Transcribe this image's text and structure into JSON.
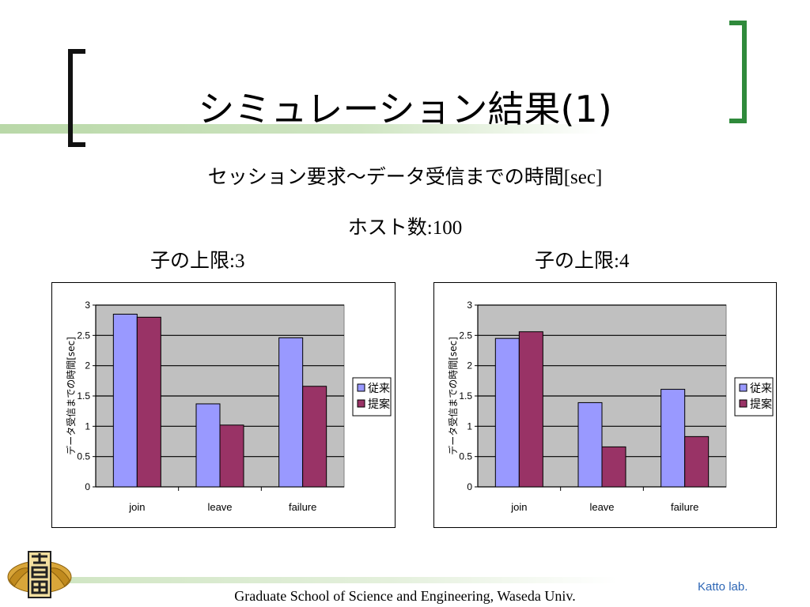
{
  "slide": {
    "title": "シミュレーション結果(1)",
    "subtitle_main": "セッション要求～データ受信までの時間",
    "subtitle_unit": "[sec]",
    "hosts_label": "ホスト数",
    "hosts_sep": ":",
    "hosts_value": "100",
    "footer": "Graduate School of Science and Engineering, Waseda Univ.",
    "lab": "Katto lab."
  },
  "colors": {
    "series_conventional": "#9999ff",
    "series_proposed": "#993366",
    "plot_background": "#c0c0c0",
    "accent_green": "#2f8a3b"
  },
  "chart_data": [
    {
      "type": "bar",
      "heading_label": "子の上限",
      "heading_sep": ":",
      "heading_value": "3",
      "ylabel": "データ受信までの時間[sec]",
      "ylim": [
        0,
        3
      ],
      "yticks": [
        "0",
        "0.5",
        "1",
        "1.5",
        "2",
        "2.5",
        "3"
      ],
      "categories": [
        "join",
        "leave",
        "failure"
      ],
      "series": [
        {
          "name": "従来",
          "values": [
            2.85,
            1.37,
            2.46
          ]
        },
        {
          "name": "提案",
          "values": [
            2.8,
            1.02,
            1.66
          ]
        }
      ],
      "legend_position": "right",
      "grid": true
    },
    {
      "type": "bar",
      "heading_label": "子の上限",
      "heading_sep": ":",
      "heading_value": "4",
      "ylabel": "データ受信までの時間[sec]",
      "ylim": [
        0,
        3
      ],
      "yticks": [
        "0",
        "0.5",
        "1",
        "1.5",
        "2",
        "2.5",
        "3"
      ],
      "categories": [
        "join",
        "leave",
        "failure"
      ],
      "series": [
        {
          "name": "従来",
          "values": [
            2.45,
            1.39,
            1.61
          ]
        },
        {
          "name": "提案",
          "values": [
            2.56,
            0.66,
            0.83
          ]
        }
      ],
      "legend_position": "right",
      "grid": true
    }
  ]
}
